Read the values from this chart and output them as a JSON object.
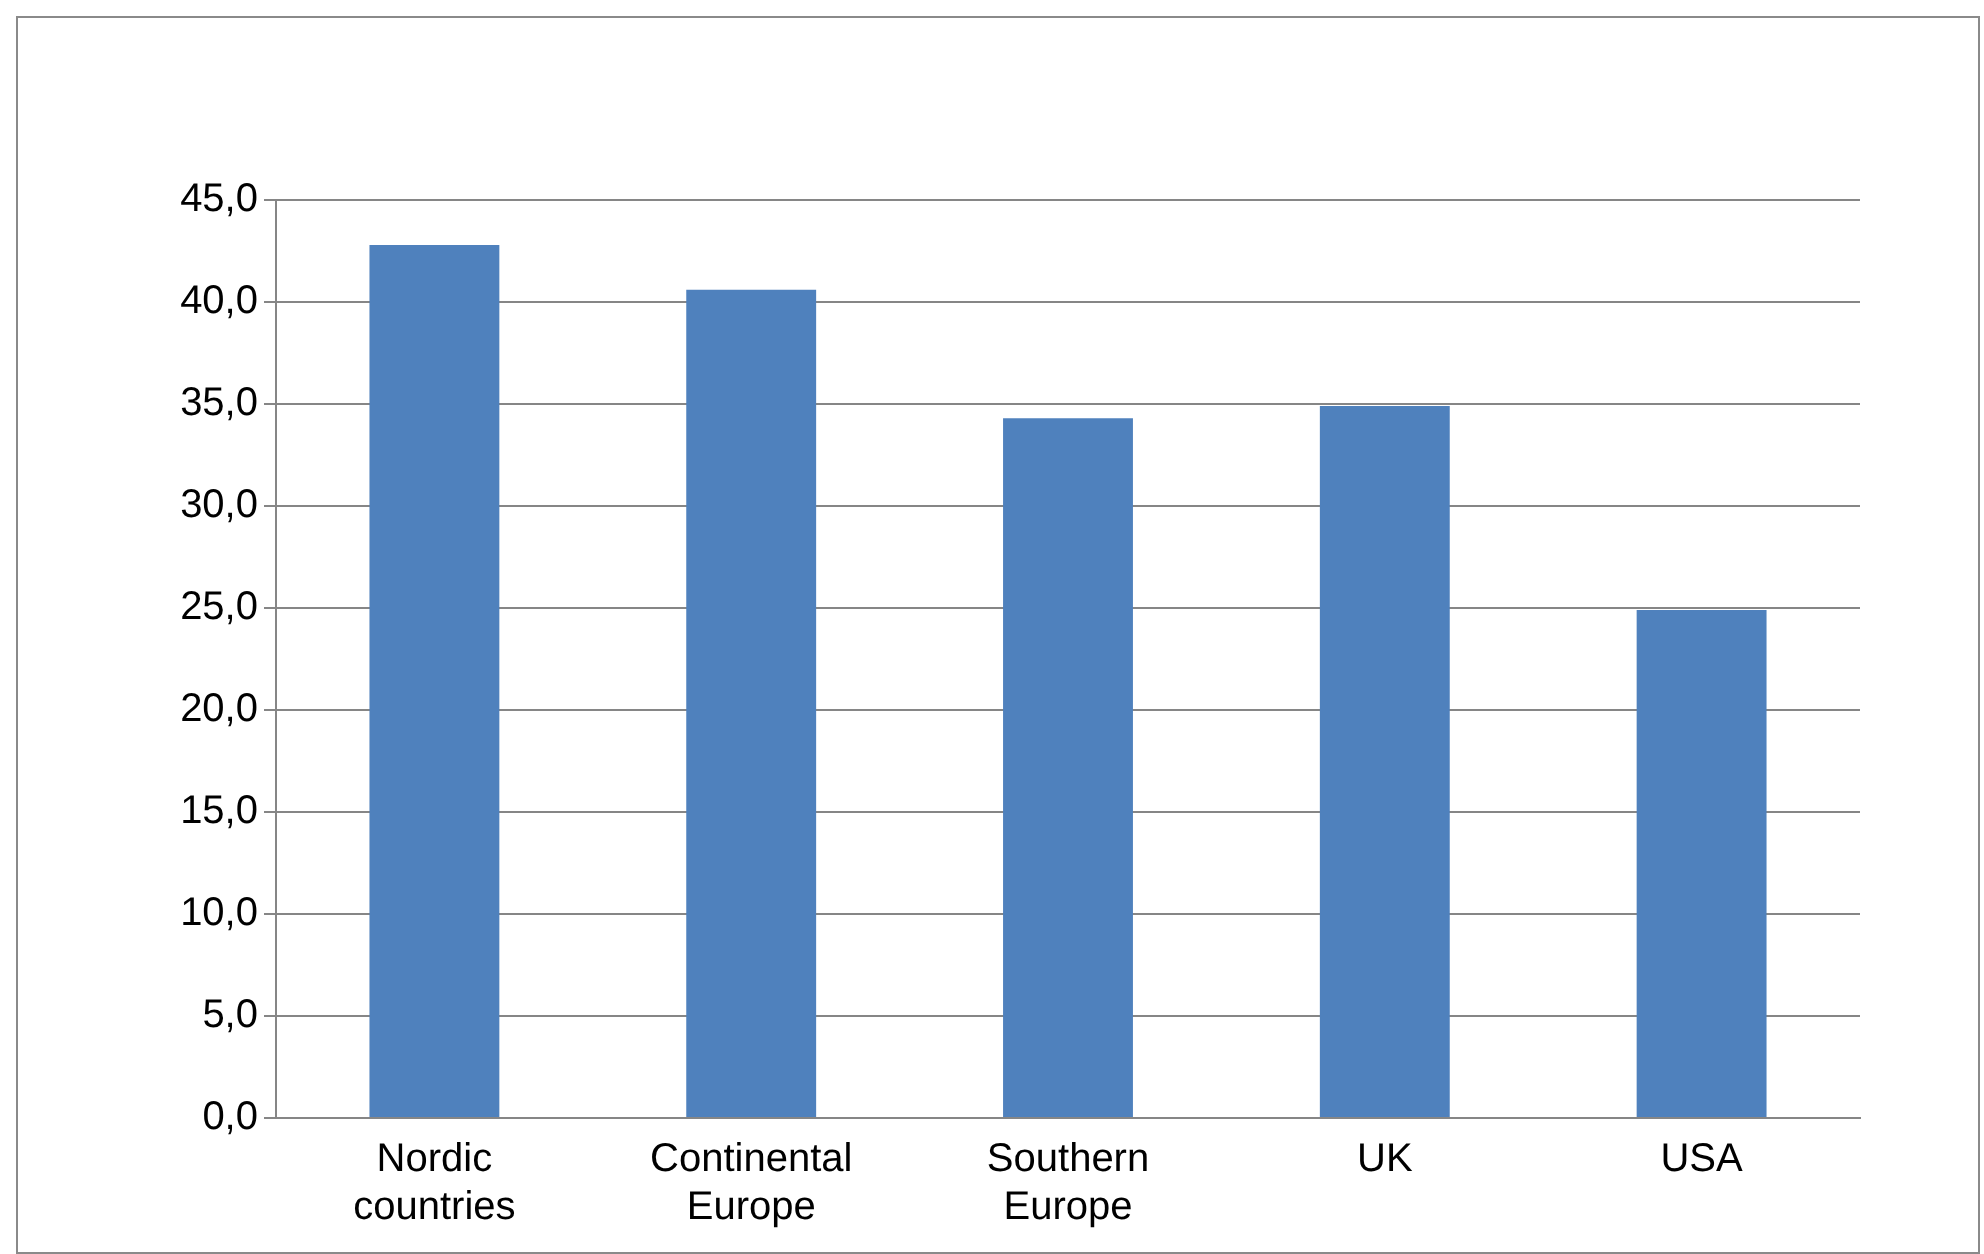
{
  "chart_data": {
    "type": "bar",
    "categories": [
      "Nordic countries",
      "Continental Europe",
      "Southern Europe",
      "UK",
      "USA"
    ],
    "values": [
      42.8,
      40.6,
      34.3,
      34.9,
      24.9
    ],
    "color": "#4f81bd",
    "ylim": [
      0,
      45
    ],
    "yticks": [
      {
        "value": 0,
        "label": "0,0"
      },
      {
        "value": 5,
        "label": "5,0"
      },
      {
        "value": 10,
        "label": "10,0"
      },
      {
        "value": 15,
        "label": "15,0"
      },
      {
        "value": 20,
        "label": "20,0"
      },
      {
        "value": 25,
        "label": "25,0"
      },
      {
        "value": 30,
        "label": "30,0"
      },
      {
        "value": 35,
        "label": "35,0"
      },
      {
        "value": 40,
        "label": "40,0"
      },
      {
        "value": 45,
        "label": "45,0"
      }
    ],
    "grid": "y",
    "legend": false
  }
}
